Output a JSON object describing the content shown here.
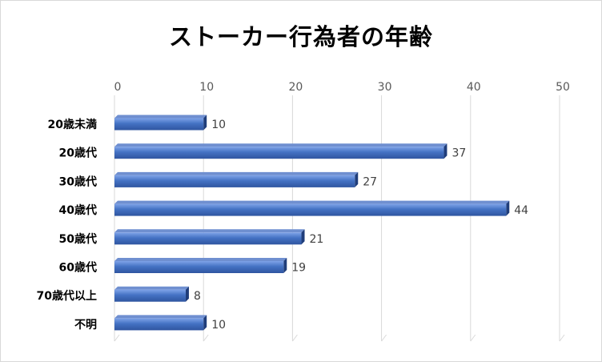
{
  "chart_data": {
    "type": "bar",
    "orientation": "horizontal",
    "title": "ストーカー行為者の年齢",
    "xlabel": "",
    "ylabel": "",
    "categories": [
      "20歳未満",
      "20歳代",
      "30歳代",
      "40歳代",
      "50歳代",
      "60歳代",
      "70歳代以上",
      "不明"
    ],
    "values": [
      10,
      37,
      27,
      44,
      21,
      19,
      8,
      10
    ],
    "xlim": [
      0,
      50
    ],
    "ticks": [
      0,
      10,
      20,
      30,
      40,
      50
    ],
    "grid": true,
    "legend": "none",
    "bar_color": "#4472c4",
    "data_labels": true
  }
}
